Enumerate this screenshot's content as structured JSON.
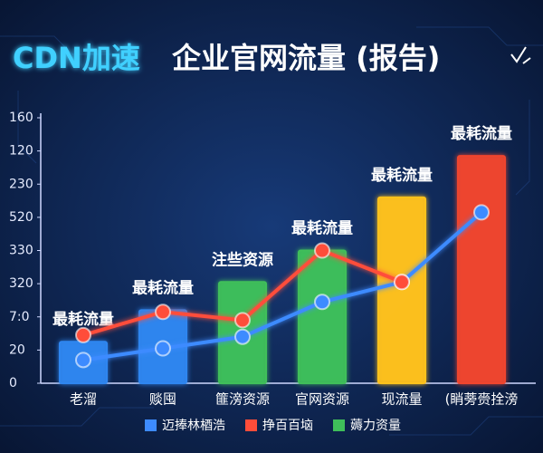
{
  "chart_data": {
    "type": "bar-line",
    "title_highlight": "CDN加速",
    "title": "企业官网流量 (报告)",
    "categories": [
      "老溜",
      "赕囤",
      "篚滂资源",
      "官网资源",
      "现流量",
      "(睄蒡赍拴滂"
    ],
    "bar_labels": [
      "最耗流量",
      "最耗流量",
      "注些资源",
      "最耗流量",
      "最耗流量",
      "最耗流量"
    ],
    "ylim": [
      0,
      160
    ],
    "yticks": [
      0,
      20,
      {
        "value": 40,
        "label": "7:0"
      },
      {
        "value": 60,
        "label": "320"
      },
      {
        "value": 80,
        "label": "330"
      },
      {
        "value": 100,
        "label": "520"
      },
      {
        "value": 120,
        "label": "230"
      },
      {
        "value": 140,
        "label": "120"
      },
      160
    ],
    "series": [
      {
        "name": "迈捧林梄浩",
        "type": "line",
        "color": "#3d8bff",
        "values": [
          14,
          21,
          28,
          49,
          61,
          103
        ]
      },
      {
        "name": "挣百百垴",
        "type": "line",
        "color": "#ff4d3a",
        "values": [
          29,
          43,
          38,
          80,
          61,
          null
        ]
      },
      {
        "name": "薅力资量",
        "type": "bar",
        "color": "#3fbf5a",
        "values": [
          25,
          44,
          61,
          80,
          112,
          137
        ],
        "colors": [
          "#2f86f0",
          "#2f86f0",
          "#3fbf5a",
          "#3fbf5a",
          "#ffc21a",
          "#f0452f"
        ]
      }
    ]
  }
}
